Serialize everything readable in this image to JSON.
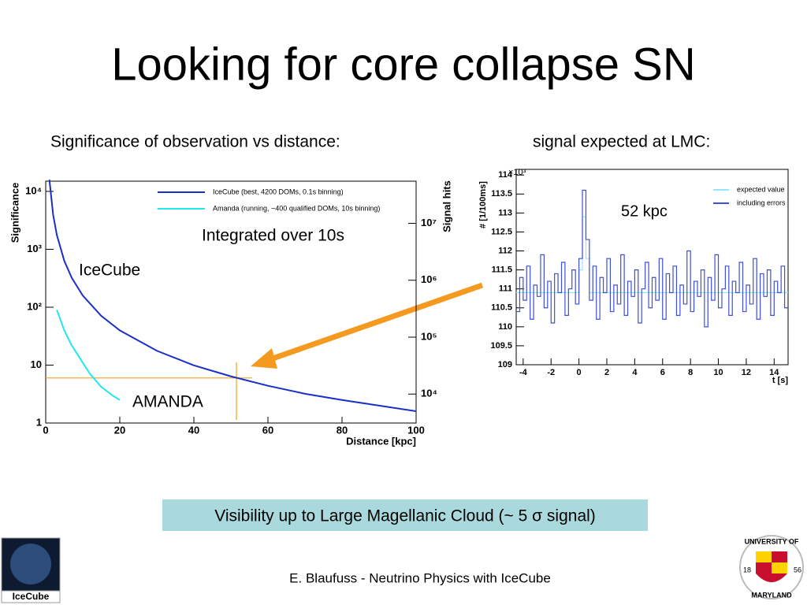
{
  "title": "Looking for core collapse SN",
  "subtitle_left": "Significance of observation vs distance:",
  "subtitle_right": "signal expected at LMC:",
  "conclusion": "Visibility up to Large Magellanic Cloud  (~ 5 σ signal)",
  "footer": "E. Blaufuss - Neutrino Physics with IceCube",
  "logos": {
    "left": "IceCube",
    "right_top": "UNIVERSITY OF",
    "right_bottom": "MARYLAND",
    "year_left": "18",
    "year_right": "56"
  },
  "chart_data": [
    {
      "type": "line",
      "xlabel": "Distance [kpc]",
      "ylabel": "Significance",
      "y2label": "Signal hits",
      "xlim": [
        0,
        100
      ],
      "xticks": [
        0,
        20,
        40,
        60,
        80,
        100
      ],
      "ylim": [
        1,
        15000
      ],
      "ylog": true,
      "yticks": [
        1,
        10,
        {
          "value": 100,
          "label": "10²"
        },
        {
          "value": 1000,
          "label": "10³"
        },
        {
          "value": 10000,
          "label": "10⁴"
        }
      ],
      "y2lim": [
        3100,
        55000000
      ],
      "y2log": true,
      "y2ticks": [
        {
          "value": 10000,
          "label": "10⁴"
        },
        {
          "value": 100000,
          "label": "10⁵"
        },
        {
          "value": 1000000,
          "label": "10⁶"
        },
        {
          "value": 10000000,
          "label": "10⁷"
        }
      ],
      "legend": "top-left",
      "series": [
        {
          "name": "IceCube (best, 4200 DOMs, 0.1s binning)",
          "color": "#1a2fc8",
          "x": [
            1,
            2,
            3,
            5,
            7,
            10,
            15,
            20,
            30,
            40,
            50,
            60,
            70,
            80,
            90,
            100
          ],
          "values": [
            15900,
            3975,
            1767,
            636,
            324,
            159,
            70.7,
            39.8,
            17.7,
            9.9,
            6.4,
            4.4,
            3.2,
            2.5,
            2.0,
            1.6
          ]
        },
        {
          "name": "Amanda (running, ~400 qualified DOMs, 10s binning)",
          "color": "#22e6f0",
          "x": [
            3,
            5,
            7,
            10,
            12,
            15,
            18,
            20
          ],
          "values": [
            90,
            40,
            22,
            11,
            7,
            4.2,
            3,
            2.5
          ]
        }
      ],
      "marker": {
        "x": 51.5,
        "y": 6,
        "color": "#f0a020"
      },
      "annotations": [
        {
          "text": "IceCube",
          "color": "#1a3fc4"
        },
        {
          "text": "AMANDA",
          "color": "#1aa8e0"
        },
        {
          "text": "Integrated over 10s",
          "color": "#7a1fd0"
        }
      ]
    },
    {
      "type": "line",
      "line_style": "step",
      "xlabel": "t [s]",
      "ylabel": "# [1/100ms]",
      "y_multiplier": "×10³",
      "xlim": [
        -4.5,
        15
      ],
      "xticks": [
        -4,
        -2,
        0,
        2,
        4,
        6,
        8,
        10,
        12,
        14
      ],
      "ylim": [
        109,
        114.15
      ],
      "yticks": [
        109,
        109.5,
        110,
        110.5,
        111,
        111.5,
        112,
        112.5,
        113,
        113.5,
        114
      ],
      "legend": "top-right",
      "x": [
        -4.5,
        -4.25,
        -4,
        -3.75,
        -3.5,
        -3.25,
        -3,
        -2.75,
        -2.5,
        -2.25,
        -2,
        -1.75,
        -1.5,
        -1.25,
        -1,
        -0.75,
        -0.5,
        -0.25,
        0,
        0.25,
        0.5,
        0.75,
        1,
        1.25,
        1.5,
        1.75,
        2,
        2.25,
        2.5,
        2.75,
        3,
        3.25,
        3.5,
        3.75,
        4,
        4.25,
        4.5,
        4.75,
        5,
        5.25,
        5.5,
        5.75,
        6,
        6.25,
        6.5,
        6.75,
        7,
        7.25,
        7.5,
        7.75,
        8,
        8.25,
        8.5,
        8.75,
        9,
        9.25,
        9.5,
        9.75,
        10,
        10.25,
        10.5,
        10.75,
        11,
        11.25,
        11.5,
        11.75,
        12,
        12.25,
        12.5,
        12.75,
        13,
        13.25,
        13.5,
        13.75,
        14,
        14.25,
        14.5,
        14.75
      ],
      "series": [
        {
          "name": "expected value",
          "color": "#8fe8ff",
          "values": [
            110.9,
            110.9,
            110.9,
            110.9,
            110.9,
            110.9,
            110.9,
            110.9,
            110.9,
            110.9,
            110.9,
            110.9,
            110.9,
            110.9,
            110.9,
            110.9,
            110.9,
            110.9,
            111.5,
            112.9,
            111.8,
            110.9,
            110.9,
            110.9,
            110.9,
            110.9,
            110.9,
            110.9,
            110.9,
            110.9,
            110.9,
            110.9,
            110.9,
            110.9,
            110.9,
            110.9,
            110.9,
            110.9,
            110.9,
            110.9,
            110.9,
            110.9,
            110.9,
            110.9,
            110.9,
            110.9,
            110.9,
            110.9,
            110.9,
            110.9,
            110.9,
            110.9,
            110.9,
            110.9,
            110.9,
            110.9,
            110.9,
            110.9,
            110.9,
            110.9,
            110.9,
            110.9,
            110.9,
            110.9,
            110.9,
            110.9,
            110.9,
            110.9,
            110.9,
            110.9,
            110.9,
            110.9,
            110.9,
            110.9,
            110.9,
            110.9,
            110.9,
            110.9
          ]
        },
        {
          "name": "including errors",
          "color": "#3f4fd8",
          "values": [
            110.4,
            111.3,
            110.7,
            111.6,
            110.2,
            111.1,
            110.8,
            111.9,
            110.5,
            111.2,
            110.1,
            111.4,
            110.9,
            111.7,
            110.3,
            111.0,
            111.5,
            110.6,
            111.8,
            113.6,
            112.3,
            110.7,
            111.6,
            110.2,
            111.3,
            110.9,
            111.8,
            110.4,
            111.1,
            110.6,
            111.9,
            110.3,
            111.2,
            110.8,
            111.5,
            110.1,
            111.0,
            111.7,
            110.5,
            111.3,
            110.7,
            111.8,
            110.2,
            111.4,
            110.9,
            111.6,
            110.3,
            111.1,
            110.6,
            112.0,
            110.4,
            111.2,
            110.8,
            111.5,
            110.0,
            111.3,
            110.7,
            111.9,
            110.5,
            111.0,
            111.6,
            110.3,
            111.2,
            110.9,
            111.7,
            110.4,
            111.1,
            110.6,
            111.8,
            110.2,
            111.4,
            110.8,
            111.5,
            110.3,
            111.2,
            110.9,
            111.6,
            110.5
          ]
        }
      ],
      "annotations": [
        {
          "text": "52 kpc",
          "color": "#000000"
        }
      ]
    }
  ]
}
